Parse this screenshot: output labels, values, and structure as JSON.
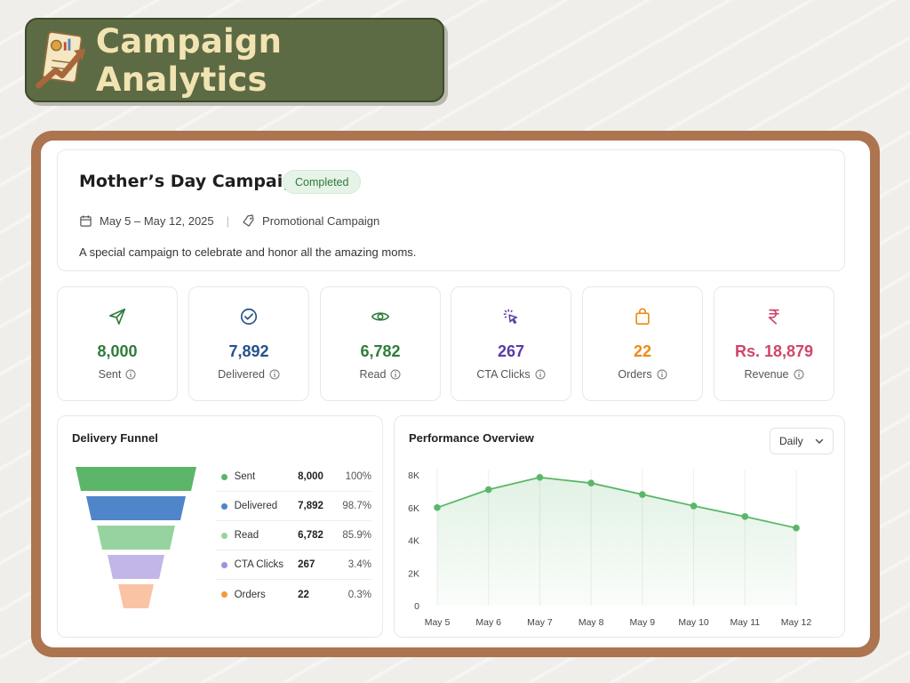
{
  "banner": {
    "title": "Campaign Analytics",
    "icon": "report-chart-arrow-icon"
  },
  "campaign": {
    "title": "Mother’s Day Campaign",
    "status": "Completed",
    "date_range": "May 5 – May 12, 2025",
    "type": "Promotional Campaign",
    "description": "A special campaign to celebrate and honor all the amazing moms."
  },
  "stats": [
    {
      "label": "Sent",
      "value": "8,000",
      "color": "#2e7d3a",
      "icon": "send-icon"
    },
    {
      "label": "Delivered",
      "value": "7,892",
      "color": "#25528a",
      "icon": "check-circle-icon"
    },
    {
      "label": "Read",
      "value": "6,782",
      "color": "#2e7d3a",
      "icon": "eye-icon"
    },
    {
      "label": "CTA Clicks",
      "value": "267",
      "color": "#5b3aa8",
      "icon": "cursor-click-icon"
    },
    {
      "label": "Orders",
      "value": "22",
      "color": "#ef8a14",
      "icon": "shopping-bag-icon"
    },
    {
      "label": "Revenue",
      "value": "Rs. 18,879",
      "color": "#d1456a",
      "icon": "rupee-icon"
    }
  ],
  "funnel": {
    "title": "Delivery Funnel",
    "rows": [
      {
        "label": "Sent",
        "value": "8,000",
        "pct": "100%",
        "color": "#5bb66a"
      },
      {
        "label": "Delivered",
        "value": "7,892",
        "pct": "98.7%",
        "color": "#4f86c9"
      },
      {
        "label": "Read",
        "value": "6,782",
        "pct": "85.9%",
        "color": "#96d3a0"
      },
      {
        "label": "CTA Clicks",
        "value": "267",
        "pct": "3.4%",
        "color": "#a48fdc"
      },
      {
        "label": "Orders",
        "value": "22",
        "pct": "0.3%",
        "color": "#f59a3c"
      }
    ]
  },
  "performance": {
    "title": "Performance Overview",
    "period": "Daily"
  },
  "chart_data": {
    "type": "area",
    "title": "Performance Overview",
    "x": [
      "May 5",
      "May 6",
      "May 7",
      "May 8",
      "May 9",
      "May 10",
      "May 11",
      "May 12"
    ],
    "y_ticks": [
      "0",
      "2K",
      "4K",
      "6K",
      "8K"
    ],
    "ylim": [
      0,
      8000
    ],
    "series": [
      {
        "values": [
          6000,
          7100,
          7850,
          7500,
          6800,
          6100,
          5450,
          4750
        ],
        "color": "#5bb66a"
      }
    ],
    "grid": "vertical"
  }
}
